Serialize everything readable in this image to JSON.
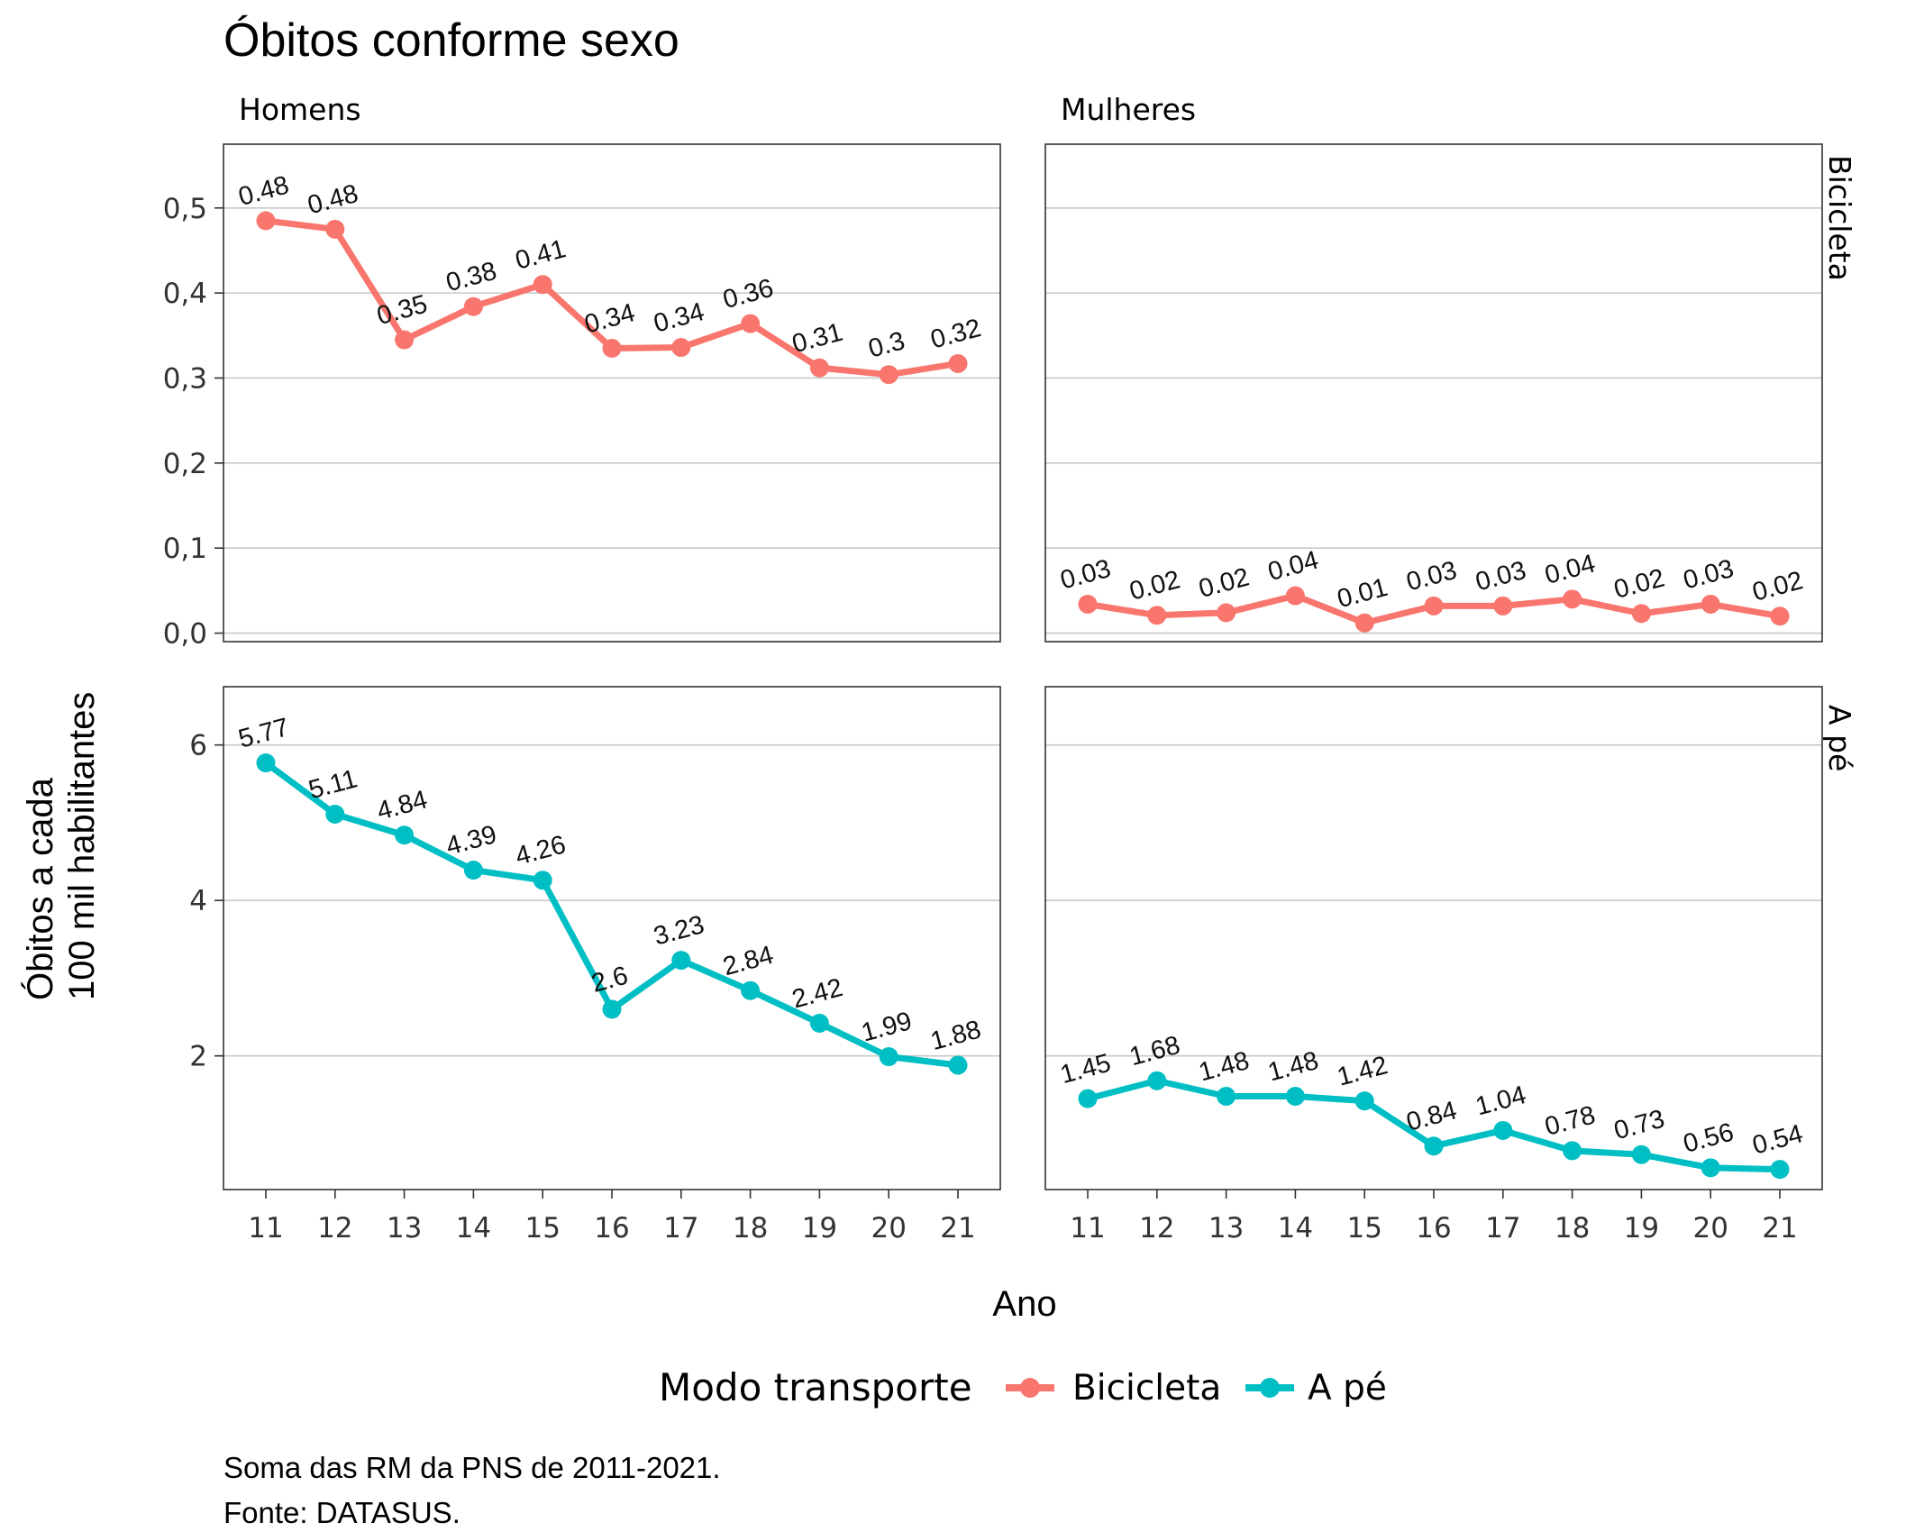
{
  "chart_data": {
    "type": "line",
    "title": "Óbitos conforme sexo",
    "xlabel": "Ano",
    "ylabel_line1": "Óbitos a cada",
    "ylabel_line2": "100 mil habilitantes",
    "x": [
      "11",
      "12",
      "13",
      "14",
      "15",
      "16",
      "17",
      "18",
      "19",
      "20",
      "21"
    ],
    "facet_columns": [
      "Homens",
      "Mulheres"
    ],
    "facet_rows": [
      "Bicicleta",
      "A pé"
    ],
    "legend_title": "Modo transporte",
    "legend_position": "bottom",
    "grid": "horizontal major",
    "row_scales": [
      {
        "ylim": [
          -0.01,
          0.575
        ],
        "ticks": [
          0.0,
          0.1,
          0.2,
          0.3,
          0.4,
          0.5
        ],
        "tick_labels": [
          "0,0",
          "0,1",
          "0,2",
          "0,3",
          "0,4",
          "0,5"
        ]
      },
      {
        "ylim": [
          0.28,
          6.75
        ],
        "ticks": [
          2,
          4,
          6
        ],
        "tick_labels": [
          "2",
          "4",
          "6"
        ]
      }
    ],
    "series": [
      {
        "name": "Bicicleta",
        "color": "#F8766D",
        "facet": "Homens",
        "row": 0,
        "values": [
          0.485,
          0.475,
          0.345,
          0.384,
          0.41,
          0.335,
          0.336,
          0.364,
          0.312,
          0.304,
          0.317
        ],
        "labels": [
          "0.48",
          "0.48",
          "0.35",
          "0.38",
          "0.41",
          "0.34",
          "0.34",
          "0.36",
          "0.31",
          "0.3",
          "0.32"
        ]
      },
      {
        "name": "Bicicleta",
        "color": "#F8766D",
        "facet": "Mulheres",
        "row": 0,
        "values": [
          0.034,
          0.021,
          0.024,
          0.044,
          0.012,
          0.032,
          0.032,
          0.04,
          0.023,
          0.034,
          0.02
        ],
        "labels": [
          "0.03",
          "0.02",
          "0.02",
          "0.04",
          "0.01",
          "0.03",
          "0.03",
          "0.04",
          "0.02",
          "0.03",
          "0.02"
        ]
      },
      {
        "name": "A pé",
        "color": "#00BFC4",
        "facet": "Homens",
        "row": 1,
        "values": [
          5.77,
          5.11,
          4.84,
          4.39,
          4.26,
          2.6,
          3.23,
          2.84,
          2.42,
          1.99,
          1.88
        ],
        "labels": [
          "5.77",
          "5.11",
          "4.84",
          "4.39",
          "4.26",
          "2.6",
          "3.23",
          "2.84",
          "2.42",
          "1.99",
          "1.88"
        ]
      },
      {
        "name": "A pé",
        "color": "#00BFC4",
        "facet": "Mulheres",
        "row": 1,
        "values": [
          1.45,
          1.68,
          1.48,
          1.48,
          1.42,
          0.84,
          1.04,
          0.78,
          0.73,
          0.56,
          0.54
        ],
        "labels": [
          "1.45",
          "1.68",
          "1.48",
          "1.48",
          "1.42",
          "0.84",
          "1.04",
          "0.78",
          "0.73",
          "0.56",
          "0.54"
        ]
      }
    ],
    "caption_line1": "Soma das RM da PNS de 2011-2021.",
    "caption_line2": "Fonte: DATASUS."
  }
}
